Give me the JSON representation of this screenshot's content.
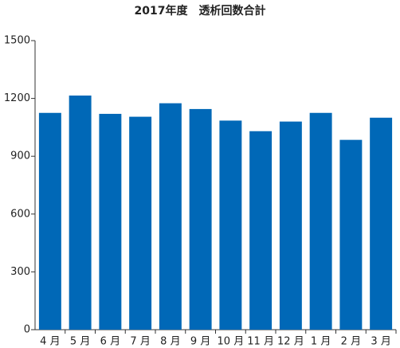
{
  "chart_data": {
    "type": "bar",
    "title": "2017年度　透析回数合計",
    "categories": [
      "4 月",
      "5 月",
      "6 月",
      "7 月",
      "8 月",
      "9 月",
      "10 月",
      "11 月",
      "12 月",
      "1 月",
      "2 月",
      "3 月"
    ],
    "values": [
      1125,
      1215,
      1120,
      1105,
      1175,
      1145,
      1085,
      1030,
      1080,
      1125,
      985,
      1100
    ],
    "color": "#0068b7",
    "ylim": [
      0,
      1500
    ],
    "yticks": [
      0,
      300,
      600,
      900,
      1200,
      1500
    ],
    "grid": false
  }
}
